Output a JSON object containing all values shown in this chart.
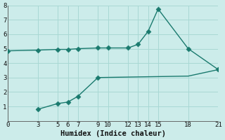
{
  "line1_x": [
    0,
    3,
    5,
    6,
    7,
    9,
    10,
    12,
    13,
    14,
    15,
    18,
    21
  ],
  "line1_y": [
    4.85,
    4.9,
    4.95,
    4.95,
    5.0,
    5.05,
    5.05,
    5.05,
    5.3,
    6.2,
    7.75,
    5.0,
    3.55
  ],
  "line1_marker_x": [
    0,
    3,
    5,
    6,
    7,
    9,
    10,
    12,
    13,
    14,
    15,
    18,
    21
  ],
  "line1_marker_y": [
    4.85,
    4.9,
    4.95,
    4.95,
    5.0,
    5.05,
    5.05,
    5.05,
    5.3,
    6.2,
    7.75,
    5.0,
    3.55
  ],
  "line2_x": [
    3,
    5,
    6,
    7,
    9,
    18,
    21
  ],
  "line2_y": [
    0.8,
    1.2,
    1.3,
    1.7,
    3.0,
    3.1,
    3.55
  ],
  "line2_marker_x": [
    3,
    5,
    6,
    7,
    9
  ],
  "line2_marker_y": [
    0.8,
    1.2,
    1.3,
    1.7,
    3.0
  ],
  "color": "#1a7a6e",
  "bg_color": "#ccecea",
  "grid_color": "#a8d8d4",
  "xlabel": "Humidex (Indice chaleur)",
  "xlim": [
    0,
    21
  ],
  "ylim": [
    0,
    8
  ],
  "xticks": [
    0,
    3,
    5,
    6,
    7,
    9,
    10,
    12,
    13,
    14,
    15,
    18,
    21
  ],
  "yticks": [
    1,
    2,
    3,
    4,
    5,
    6,
    7,
    8
  ],
  "markersize": 3.5,
  "linewidth": 1.0,
  "xlabel_fontsize": 7.5
}
